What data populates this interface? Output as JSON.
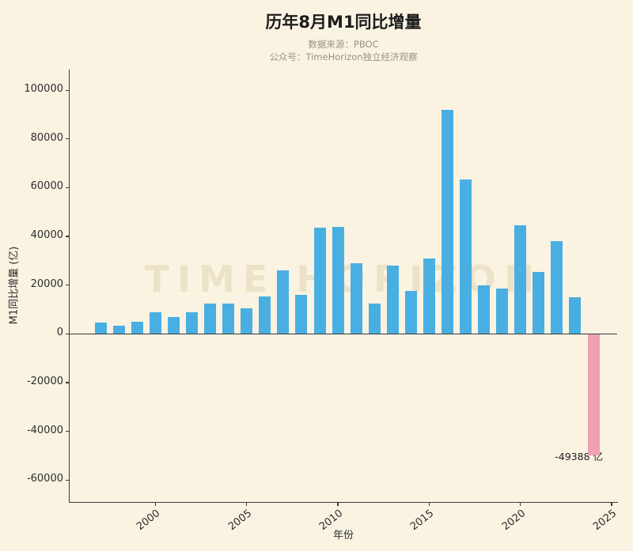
{
  "title": "历年8月M1同比增量",
  "subtitle1": "数据来源：PBOC",
  "subtitle2": "公众号：TimeHorizon独立经济观察",
  "watermark": "TIME HORIZON",
  "colors": {
    "background": "#faf3e2",
    "bar": "#49aee2",
    "bar_negative": "#f0a0b4",
    "axis": "#3a3a3a",
    "text": "#2b2b2b",
    "subtitle_text": "#9b9186",
    "watermark_text": "#d8c89d"
  },
  "chart_data": {
    "type": "bar",
    "title": "历年8月M1同比增量",
    "xlabel": "年份",
    "ylabel": "M1同比增量 (亿)",
    "x": [
      1997,
      1998,
      1999,
      2000,
      2001,
      2002,
      2003,
      2004,
      2005,
      2006,
      2007,
      2008,
      2009,
      2010,
      2011,
      2012,
      2013,
      2014,
      2015,
      2016,
      2017,
      2018,
      2019,
      2020,
      2021,
      2022,
      2023,
      2024
    ],
    "values": [
      4500,
      3500,
      5000,
      8800,
      7000,
      8800,
      12300,
      12300,
      10500,
      15500,
      26000,
      16000,
      43500,
      44000,
      29000,
      12500,
      28000,
      17800,
      31000,
      92000,
      63500,
      20000,
      18500,
      44500,
      25500,
      38000,
      15000,
      -49388
    ],
    "yticks": [
      -60000,
      -40000,
      -20000,
      0,
      20000,
      40000,
      60000,
      80000,
      100000
    ],
    "xticks": [
      2000,
      2005,
      2010,
      2015,
      2020,
      2025
    ],
    "xlim": [
      1995.3,
      2025.3
    ],
    "ylim": [
      -69000,
      108500
    ],
    "grid": false,
    "legend": "none",
    "highlight_year": 2024,
    "annotation": {
      "text": "-49388 亿",
      "year": 2024,
      "value": -49388
    }
  }
}
